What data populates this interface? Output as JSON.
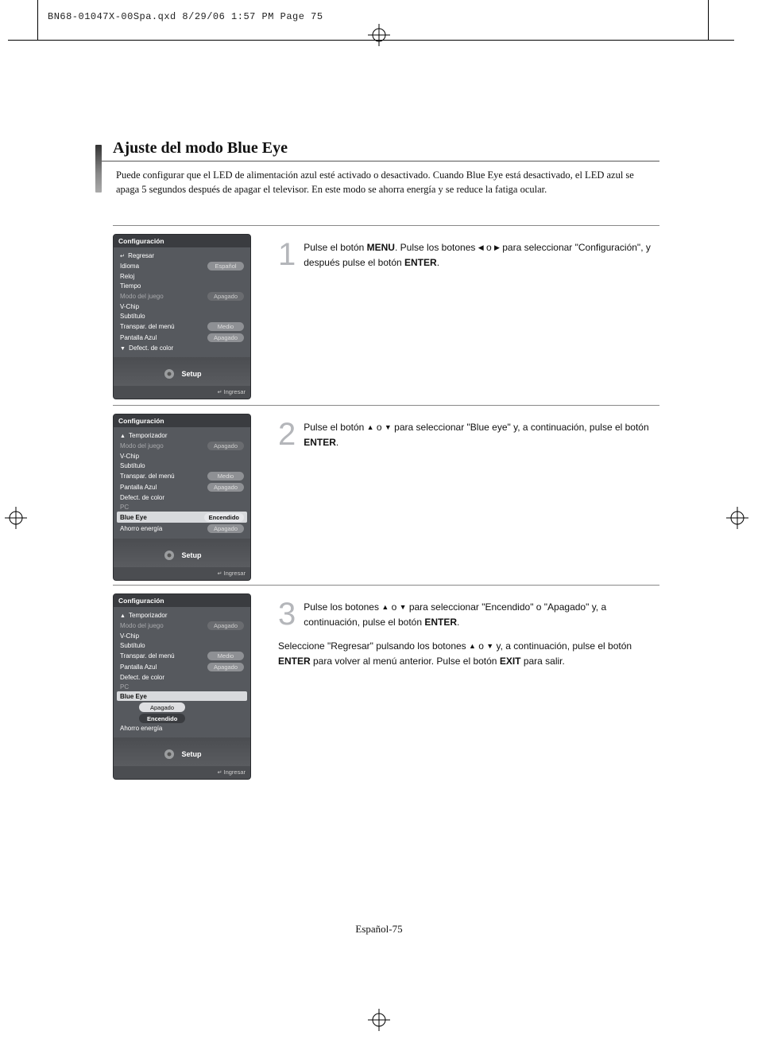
{
  "meta": {
    "header_line": "BN68-01047X-00Spa.qxd  8/29/06  1:57 PM  Page 75"
  },
  "page": {
    "title": "Ajuste del modo Blue Eye",
    "intro": "Puede configurar que el LED de alimentación azul esté activado o desactivado. Cuando Blue Eye está desactivado, el LED azul se apaga 5 segundos después de apagar el televisor. En este modo se ahorra energía y se reduce la fatiga ocular.",
    "footer": "Español-75"
  },
  "colors": {
    "accent_grad_top": "#333333",
    "osd_bg": "#5c5f64",
    "step_num": "#b4b6ba"
  },
  "osd_common": {
    "title": "Configuración",
    "setup_label": "Setup",
    "hint_label": "Ingresar"
  },
  "osd1": {
    "rows": [
      {
        "label": "Regresar",
        "type": "return"
      },
      {
        "label": "Idioma",
        "value": "Español",
        "pill": "normal"
      },
      {
        "label": "Reloj"
      },
      {
        "label": "Tiempo"
      },
      {
        "label": "Modo del juego",
        "value": "Apagado",
        "dim": true,
        "pill": "dark"
      },
      {
        "label": "V-Chip"
      },
      {
        "label": "Subtítulo"
      },
      {
        "label": "Transpar. del menú",
        "value": "Medio",
        "pill": "normal"
      },
      {
        "label": "Pantalla Azul",
        "value": "Apagado",
        "pill": "normal"
      },
      {
        "label": "Defect. de color",
        "type": "more"
      }
    ]
  },
  "osd2": {
    "rows": [
      {
        "label": "Temporizador",
        "type": "up"
      },
      {
        "label": "Modo del juego",
        "value": "Apagado",
        "dim": true,
        "pill": "dark"
      },
      {
        "label": "V-Chip"
      },
      {
        "label": "Subtítulo"
      },
      {
        "label": "Transpar. del menú",
        "value": "Medio",
        "pill": "normal"
      },
      {
        "label": "Pantalla Azul",
        "value": "Apagado",
        "pill": "normal"
      },
      {
        "label": "Defect. de color"
      },
      {
        "label": "PC",
        "dim": true
      },
      {
        "label": "Blue Eye",
        "value": "Encendido",
        "selected": true,
        "pill": "sel-on"
      },
      {
        "label": "Ahorro energía",
        "value": "Apagado",
        "pill": "normal"
      }
    ]
  },
  "osd3": {
    "rows": [
      {
        "label": "Temporizador",
        "type": "up"
      },
      {
        "label": "Modo del juego",
        "value": "Apagado",
        "dim": true,
        "pill": "dark"
      },
      {
        "label": "V-Chip"
      },
      {
        "label": "Subtítulo"
      },
      {
        "label": "Transpar. del menú",
        "value": "Medio",
        "pill": "normal"
      },
      {
        "label": "Pantalla Azul",
        "value": "Apagado",
        "pill": "normal"
      },
      {
        "label": "Defect. de color"
      },
      {
        "label": "PC",
        "dim": true
      },
      {
        "label": "Blue Eye",
        "selected": true,
        "popup": true
      },
      {
        "label": "Ahorro energía"
      }
    ],
    "popup": {
      "options": [
        {
          "label": "Apagado",
          "sel": false
        },
        {
          "label": "Encendido",
          "sel": true
        }
      ]
    }
  },
  "steps": {
    "s1": {
      "num": "1",
      "text_before": "Pulse el botón ",
      "b1": "MENU",
      "text_mid1": ". Pulse los botones ",
      "text_mid2": " o ",
      "text_mid3": " para seleccionar \"Configuración\", y después pulse el botón ",
      "b2": "ENTER",
      "text_after": "."
    },
    "s2": {
      "num": "2",
      "text_before": "Pulse el botón ",
      "text_mid1": " o ",
      "text_mid2": " para seleccionar \"Blue eye\" y, a continuación, pulse el botón ",
      "b1": "ENTER",
      "text_after": "."
    },
    "s3": {
      "num": "3",
      "p1_a": "Pulse los botones ",
      "p1_b": " o ",
      "p1_c": " para seleccionar \"Encendido\" o \"Apagado\" y, a continuación, pulse el botón ",
      "b1": "ENTER",
      "p1_d": ".",
      "p2_a": "Seleccione \"Regresar\" pulsando los botones ",
      "p2_b": " o ",
      "p2_c": " y, a continuación, pulse el botón  ",
      "b2": "ENTER",
      "p2_d": " para volver al menú anterior. Pulse el botón ",
      "b3": "EXIT",
      "p2_e": " para salir."
    }
  }
}
